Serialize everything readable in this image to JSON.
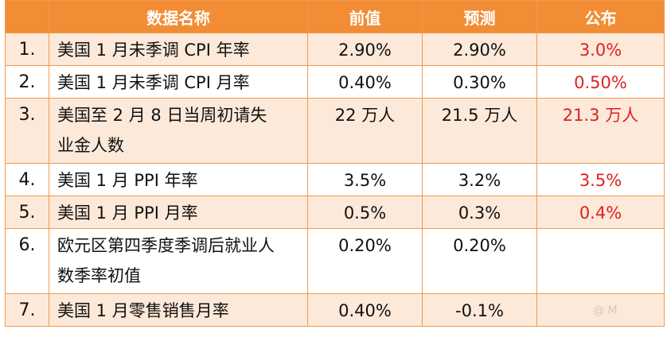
{
  "header": {
    "name": "数据名称",
    "previous": "前值",
    "forecast": "预测",
    "actual": "公布"
  },
  "rows": [
    {
      "no": "1.",
      "name": "美国 1 月未季调 CPI 年率",
      "previous": "2.90%",
      "forecast": "2.90%",
      "actual": "3.0%"
    },
    {
      "no": "2.",
      "name": "美国 1 月未季调 CPI 月率",
      "previous": "0.40%",
      "forecast": "0.30%",
      "actual": "0.50%"
    },
    {
      "no": "3.",
      "name": "美国至 2 月 8 日当周初请失业金人数",
      "previous": "22 万人",
      "forecast": "21.5 万人",
      "actual": "21.3 万人"
    },
    {
      "no": "4.",
      "name": "美国 1 月 PPI 年率",
      "previous": "3.5%",
      "forecast": "3.2%",
      "actual": "3.5%"
    },
    {
      "no": "5.",
      "name": "美国 1 月 PPI 月率",
      "previous": "0.5%",
      "forecast": "0.3%",
      "actual": "0.4%"
    },
    {
      "no": "6.",
      "name": "欧元区第四季度季调后就业人数季率初值",
      "previous": "0.20%",
      "forecast": "0.20%",
      "actual": ""
    },
    {
      "no": "7.",
      "name": "美国 1 月零售销售月率",
      "previous": "0.40%",
      "forecast": "-0.1%",
      "actual": ""
    }
  ],
  "watermark": "@ M"
}
